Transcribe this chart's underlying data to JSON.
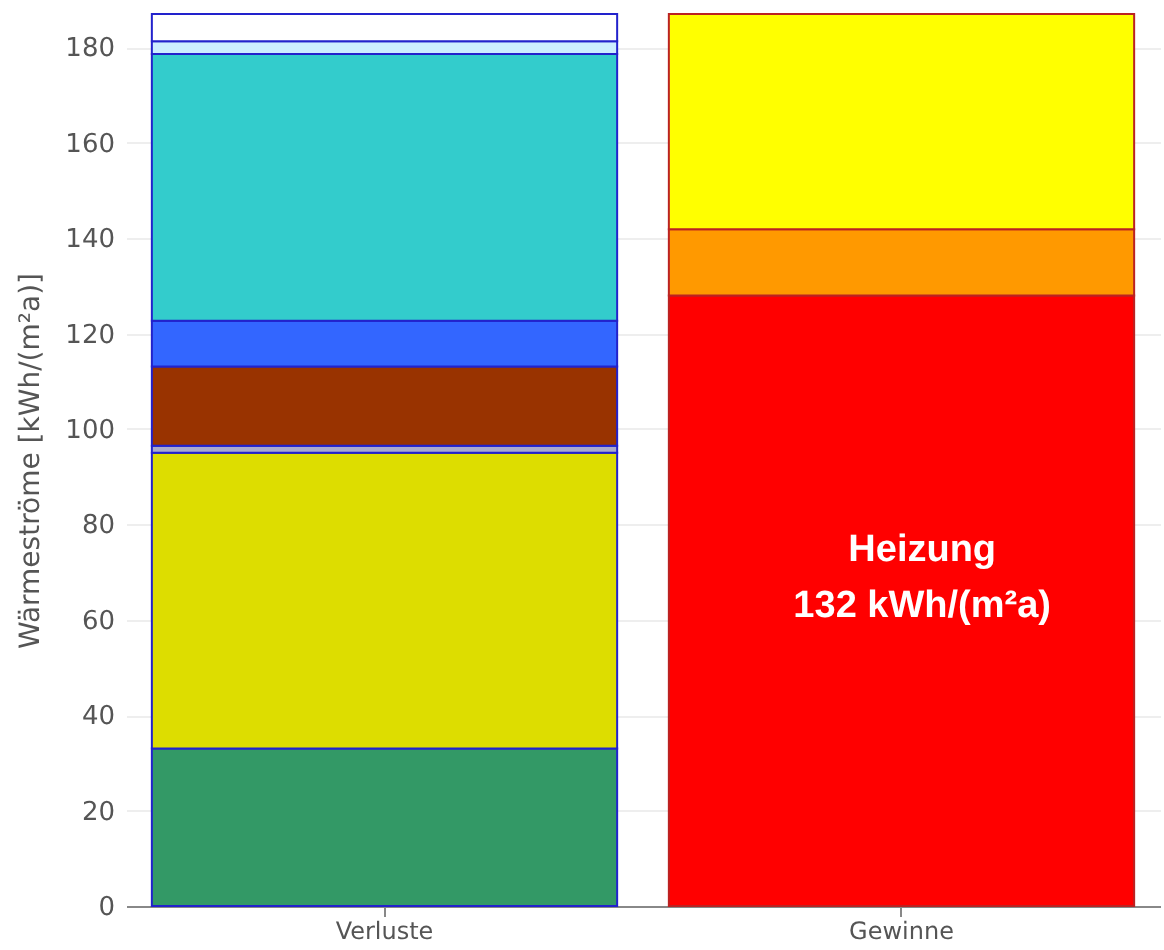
{
  "chart_data": {
    "type": "bar",
    "stacked": true,
    "categories": [
      "Verluste",
      "Gewinne"
    ],
    "ylabel": "Wärmeströme [kWh/(m²a)]",
    "ylim": [
      0,
      187
    ],
    "yticks": [
      0,
      20,
      40,
      60,
      80,
      100,
      120,
      140,
      160,
      180
    ],
    "grid": "y",
    "legend": false,
    "series": [
      {
        "color": "#339966",
        "values": [
          33,
          null
        ]
      },
      {
        "color": "#dddd00",
        "values": [
          62,
          null
        ]
      },
      {
        "color": "#aaaacc",
        "values": [
          1.5,
          null
        ]
      },
      {
        "color": "#993300",
        "values": [
          16.6,
          null
        ]
      },
      {
        "color": "#3366ff",
        "values": [
          9.6,
          null
        ]
      },
      {
        "color": "#33cccc",
        "values": [
          55.9,
          null
        ]
      },
      {
        "color": "#cceeff",
        "values": [
          2.7,
          null
        ]
      },
      {
        "color": "#ffffff",
        "values": [
          5.7,
          null
        ]
      },
      {
        "color": "#ff0000",
        "values": [
          null,
          128
        ]
      },
      {
        "color": "#ff9900",
        "values": [
          null,
          13.9
        ]
      },
      {
        "color": "#ffff00",
        "values": [
          null,
          45.1
        ]
      }
    ],
    "annotations": [
      "Heizung\n132 kWh/(m²a)"
    ]
  }
}
